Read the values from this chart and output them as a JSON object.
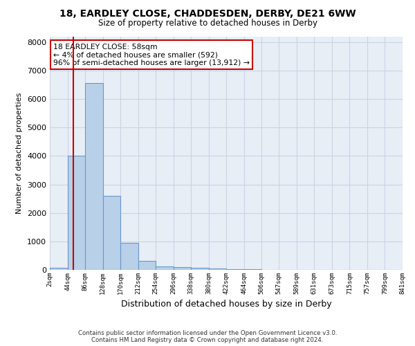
{
  "title1": "18, EARDLEY CLOSE, CHADDESDEN, DERBY, DE21 6WW",
  "title2": "Size of property relative to detached houses in Derby",
  "xlabel": "Distribution of detached houses by size in Derby",
  "ylabel": "Number of detached properties",
  "bar_left_edges": [
    2,
    44,
    86,
    128,
    170,
    212,
    254,
    296,
    338,
    380,
    422,
    464,
    506,
    547,
    589,
    631,
    673,
    715,
    757,
    799
  ],
  "bar_heights": [
    80,
    4000,
    6550,
    2600,
    950,
    310,
    130,
    100,
    80,
    60,
    30,
    15,
    10,
    5,
    3,
    2,
    1,
    1,
    1,
    1
  ],
  "bin_width": 42,
  "bar_color": "#b8d0e8",
  "bar_edge_color": "#6699cc",
  "grid_color": "#c8d4e4",
  "bg_color": "#e8eef6",
  "red_line_x": 58,
  "red_line_color": "#cc0000",
  "annotation_text": "18 EARDLEY CLOSE: 58sqm\n← 4% of detached houses are smaller (592)\n96% of semi-detached houses are larger (13,912) →",
  "annotation_box_color": "#cc0000",
  "ylim": [
    0,
    8200
  ],
  "xlim": [
    2,
    841
  ],
  "tick_labels": [
    "2sqm",
    "44sqm",
    "86sqm",
    "128sqm",
    "170sqm",
    "212sqm",
    "254sqm",
    "296sqm",
    "338sqm",
    "380sqm",
    "422sqm",
    "464sqm",
    "506sqm",
    "547sqm",
    "589sqm",
    "631sqm",
    "673sqm",
    "715sqm",
    "757sqm",
    "799sqm",
    "841sqm"
  ],
  "tick_positions": [
    2,
    44,
    86,
    128,
    170,
    212,
    254,
    296,
    338,
    380,
    422,
    464,
    506,
    547,
    589,
    631,
    673,
    715,
    757,
    799,
    841
  ],
  "footer1": "Contains HM Land Registry data © Crown copyright and database right 2024.",
  "footer2": "Contains public sector information licensed under the Open Government Licence v3.0."
}
